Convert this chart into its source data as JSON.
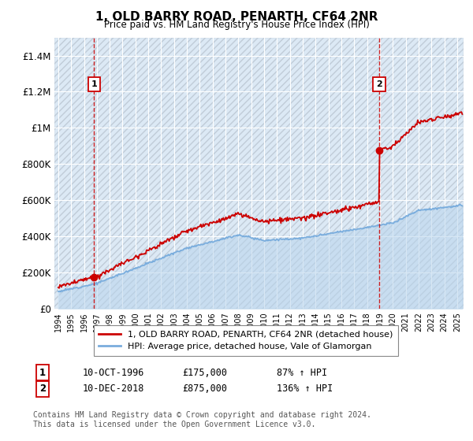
{
  "title": "1, OLD BARRY ROAD, PENARTH, CF64 2NR",
  "subtitle": "Price paid vs. HM Land Registry's House Price Index (HPI)",
  "legend_line1": "1, OLD BARRY ROAD, PENARTH, CF64 2NR (detached house)",
  "legend_line2": "HPI: Average price, detached house, Vale of Glamorgan",
  "annotation1_date": "10-OCT-1996",
  "annotation1_price": "£175,000",
  "annotation1_hpi": "87% ↑ HPI",
  "annotation2_date": "10-DEC-2018",
  "annotation2_price": "£875,000",
  "annotation2_hpi": "136% ↑ HPI",
  "footer": "Contains HM Land Registry data © Crown copyright and database right 2024.\nThis data is licensed under the Open Government Licence v3.0.",
  "red_line_color": "#cc0000",
  "blue_line_color": "#7aaddd",
  "blue_fill_color": "#b8d4ec",
  "background_color": "#dce9f5",
  "hatch_color": "#c0ccd8",
  "annotation_box_color": "#cc0000",
  "ylim": [
    0,
    1500000
  ],
  "yticks": [
    0,
    200000,
    400000,
    600000,
    800000,
    1000000,
    1200000,
    1400000
  ],
  "ytick_labels": [
    "£0",
    "£200K",
    "£400K",
    "£600K",
    "£800K",
    "£1M",
    "£1.2M",
    "£1.4M"
  ],
  "sale1_x": 1996.79,
  "sale1_y": 175000,
  "sale2_x": 2018.95,
  "sale2_y": 875000,
  "xmin": 1993.7,
  "xmax": 2025.5
}
